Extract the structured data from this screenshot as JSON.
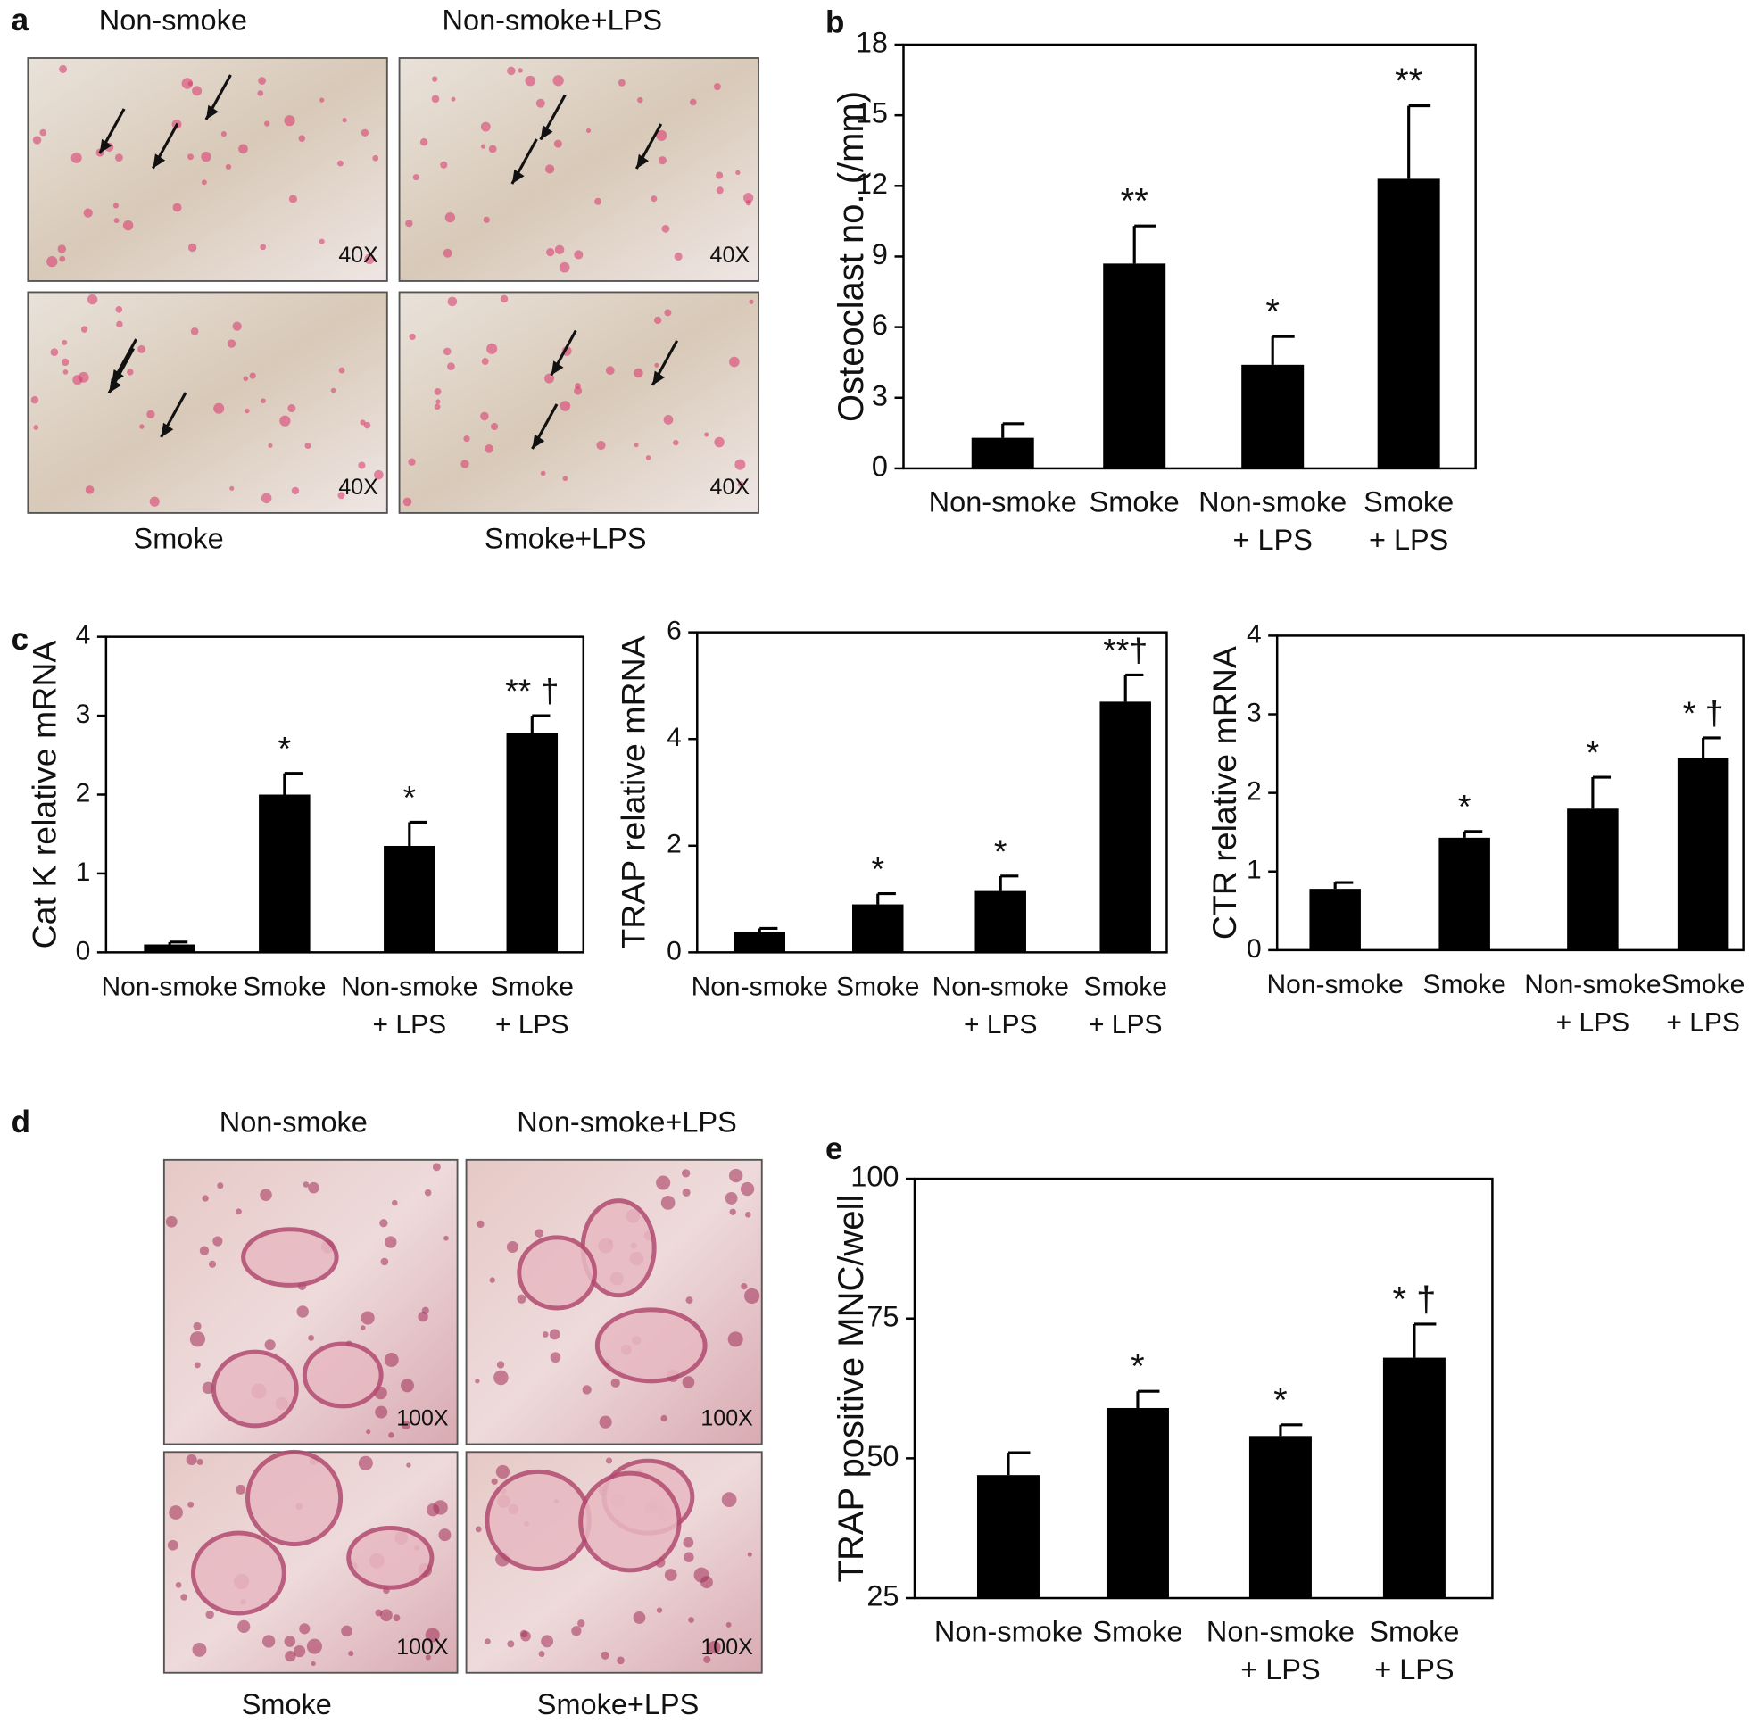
{
  "panels": {
    "a": {
      "label": "a",
      "images": [
        {
          "caption": "Non-smoke",
          "magnification": "40X"
        },
        {
          "caption": "Non-smoke+LPS",
          "magnification": "40X"
        },
        {
          "caption": "Smoke",
          "magnification": "40X"
        },
        {
          "caption": "Smoke+LPS",
          "magnification": "40X"
        }
      ]
    },
    "d": {
      "label": "d",
      "images": [
        {
          "caption": "Non-smoke",
          "magnification": "100X"
        },
        {
          "caption": "Non-smoke+LPS",
          "magnification": "100X"
        },
        {
          "caption": "Smoke",
          "magnification": "100X"
        },
        {
          "caption": "Smoke+LPS",
          "magnification": "100X"
        }
      ]
    }
  },
  "chart_data": [
    {
      "type": "bar",
      "panel": "b",
      "y_label": "Osteoclast no. (/mm)",
      "categories": [
        [
          "Non-smoke"
        ],
        [
          "Smoke"
        ],
        [
          "Non-smoke",
          "+ LPS"
        ],
        [
          "Smoke",
          "+ LPS"
        ]
      ],
      "values": [
        1.3,
        8.7,
        4.4,
        12.3
      ],
      "errors": [
        0.6,
        1.6,
        1.2,
        3.1
      ],
      "annotations": [
        null,
        "**",
        "*",
        "**"
      ],
      "color": "#000000",
      "ylim": [
        0,
        18
      ],
      "yticks": [
        0,
        3,
        6,
        9,
        12,
        15,
        18
      ]
    },
    {
      "type": "bar",
      "panel": "c",
      "y_label": "Cat K relative mRNA",
      "categories": [
        [
          "Non-smoke"
        ],
        [
          "Smoke"
        ],
        [
          "Non-smoke",
          "+ LPS"
        ],
        [
          "Smoke",
          "+ LPS"
        ]
      ],
      "values": [
        0.1,
        2.0,
        1.35,
        2.78
      ],
      "errors": [
        0.03,
        0.27,
        0.3,
        0.22
      ],
      "annotations": [
        null,
        "*",
        "*",
        "** †"
      ],
      "color": "#000000",
      "ylim": [
        0,
        4
      ],
      "yticks": [
        0,
        1,
        2,
        3,
        4
      ]
    },
    {
      "type": "bar",
      "y_label": "TRAP relative mRNA",
      "categories": [
        [
          "Non-smoke"
        ],
        [
          "Smoke"
        ],
        [
          "Non-smoke",
          "+ LPS"
        ],
        [
          "Smoke",
          "+ LPS"
        ]
      ],
      "values": [
        0.38,
        0.9,
        1.15,
        4.7
      ],
      "errors": [
        0.07,
        0.2,
        0.28,
        0.5
      ],
      "annotations": [
        null,
        "*",
        "*",
        "**†"
      ],
      "color": "#000000",
      "ylim": [
        0,
        6
      ],
      "yticks": [
        0,
        2,
        4,
        6
      ]
    },
    {
      "type": "bar",
      "y_label": "CTR relative mRNA",
      "categories": [
        [
          "Non-smoke"
        ],
        [
          "Smoke"
        ],
        [
          "Non-smoke",
          "+ LPS"
        ],
        [
          "Smoke",
          "+ LPS"
        ]
      ],
      "values": [
        0.78,
        1.43,
        1.8,
        2.45
      ],
      "errors": [
        0.08,
        0.08,
        0.4,
        0.25
      ],
      "annotations": [
        null,
        "*",
        "*",
        "* †"
      ],
      "color": "#000000",
      "ylim": [
        0,
        4
      ],
      "yticks": [
        0,
        1,
        2,
        3,
        4
      ]
    },
    {
      "type": "bar",
      "panel": "e",
      "y_label": "TRAP positive MNC/well",
      "categories": [
        [
          "Non-smoke"
        ],
        [
          "Smoke"
        ],
        [
          "Non-smoke",
          "+ LPS"
        ],
        [
          "Smoke",
          "+ LPS"
        ]
      ],
      "values": [
        47,
        59,
        54,
        68
      ],
      "errors": [
        4,
        3,
        2,
        6
      ],
      "annotations": [
        null,
        "*",
        "*",
        "* †"
      ],
      "color": "#000000",
      "ylim": [
        25,
        100
      ],
      "yticks": [
        25,
        50,
        75,
        100
      ]
    }
  ]
}
